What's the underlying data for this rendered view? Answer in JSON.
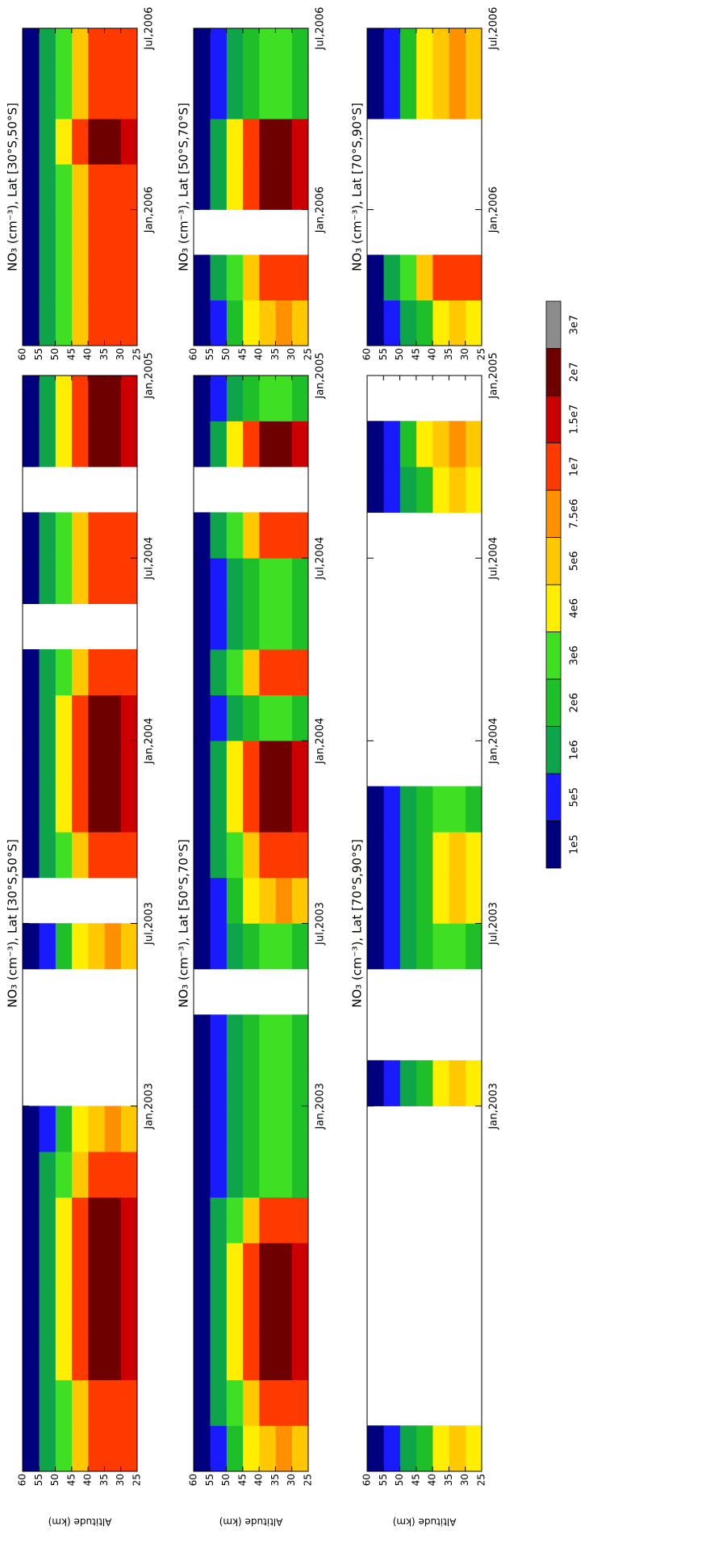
{
  "chart_data": [
    {
      "type": "contour",
      "title": "NO₃ (cm⁻³), Lat [30°S,50°S]",
      "ylabel": "Altitude (km)",
      "xlim": [
        2002,
        2005
      ],
      "xticks": [
        {
          "value": 2003,
          "label": "Jan,2003"
        },
        {
          "value": 2003.5,
          "label": "Jul,2003"
        },
        {
          "value": 2004,
          "label": "Jan,2004"
        },
        {
          "value": 2004.5,
          "label": "Jul,2004"
        },
        {
          "value": 2005,
          "label": "Jan,2005"
        }
      ],
      "ylim": [
        25,
        60
      ],
      "yticks": [
        25,
        30,
        35,
        40,
        45,
        50,
        55,
        60
      ],
      "xbins": [
        2002,
        2002.125,
        2002.25,
        2002.375,
        2002.5,
        2002.625,
        2002.75,
        2002.875,
        2003,
        2003.125,
        2003.25,
        2003.375,
        2003.5,
        2003.625,
        2003.75,
        2003.875,
        2004,
        2004.125,
        2004.25,
        2004.375,
        2004.5,
        2004.625,
        2004.75,
        2004.875,
        2005
      ],
      "ybins": [
        25,
        30,
        35,
        40,
        45,
        50,
        55,
        60
      ],
      "z": [
        [
          12000000.0,
          13000000.0,
          11000000.0,
          7000000.0,
          3500000.0,
          1200000.0,
          300000.0
        ],
        [
          12000000.0,
          13000000.0,
          11000000.0,
          7000000.0,
          3500000.0,
          1200000.0,
          300000.0
        ],
        [
          15000000.0,
          25000000.0,
          22000000.0,
          12000000.0,
          4000000.0,
          1500000.0,
          300000.0
        ],
        [
          15000000.0,
          25000000.0,
          22000000.0,
          12000000.0,
          4000000.0,
          1500000.0,
          300000.0
        ],
        [
          15000000.0,
          25000000.0,
          22000000.0,
          12000000.0,
          4000000.0,
          1500000.0,
          300000.0
        ],
        [
          15000000.0,
          25000000.0,
          22000000.0,
          12000000.0,
          4000000.0,
          1500000.0,
          300000.0
        ],
        [
          12000000.0,
          13000000.0,
          11000000.0,
          7000000.0,
          3500000.0,
          1200000.0,
          300000.0
        ],
        [
          6000000.0,
          8000000.0,
          7000000.0,
          4500000.0,
          2500000.0,
          800000.0,
          200000.0
        ],
        null,
        null,
        null,
        [
          6000000.0,
          8000000.0,
          7000000.0,
          4500000.0,
          2500000.0,
          800000.0,
          200000.0
        ],
        null,
        [
          12000000.0,
          13000000.0,
          11000000.0,
          7000000.0,
          3500000.0,
          1200000.0,
          300000.0
        ],
        [
          15000000.0,
          25000000.0,
          22000000.0,
          12000000.0,
          4000000.0,
          1500000.0,
          300000.0
        ],
        [
          15000000.0,
          25000000.0,
          22000000.0,
          12000000.0,
          4000000.0,
          1500000.0,
          300000.0
        ],
        [
          15000000.0,
          25000000.0,
          22000000.0,
          12000000.0,
          4000000.0,
          1500000.0,
          300000.0
        ],
        [
          12000000.0,
          13000000.0,
          11000000.0,
          7000000.0,
          3500000.0,
          1200000.0,
          300000.0
        ],
        null,
        [
          12000000.0,
          13000000.0,
          11000000.0,
          7000000.0,
          3500000.0,
          1200000.0,
          300000.0
        ],
        [
          12000000.0,
          13000000.0,
          11000000.0,
          7000000.0,
          3500000.0,
          1200000.0,
          300000.0
        ],
        null,
        [
          15000000.0,
          25000000.0,
          22000000.0,
          12000000.0,
          4000000.0,
          1500000.0,
          300000.0
        ],
        [
          15000000.0,
          25000000.0,
          22000000.0,
          12000000.0,
          4000000.0,
          1500000.0,
          300000.0
        ]
      ]
    },
    {
      "type": "contour",
      "title": "NO₃ (cm⁻³), Lat [30°S,50°S]",
      "xlim": [
        2005.625,
        2006.5
      ],
      "xticks": [
        {
          "value": 2006,
          "label": "Jan,2006"
        },
        {
          "value": 2006.5,
          "label": "Jul,2006"
        }
      ],
      "ylim": [
        25,
        60
      ],
      "yticks": [
        25,
        30,
        35,
        40,
        45,
        50,
        55,
        60
      ],
      "xbins": [
        2005.625,
        2005.75,
        2005.875,
        2006,
        2006.125,
        2006.25,
        2006.375,
        2006.5
      ],
      "ybins": [
        25,
        30,
        35,
        40,
        45,
        50,
        55,
        60
      ],
      "z": [
        [
          12000000.0,
          13000000.0,
          11000000.0,
          7000000.0,
          3500000.0,
          1200000.0,
          300000.0
        ],
        [
          12000000.0,
          13000000.0,
          11000000.0,
          7000000.0,
          3500000.0,
          1200000.0,
          300000.0
        ],
        [
          12000000.0,
          13000000.0,
          11000000.0,
          7000000.0,
          3500000.0,
          1200000.0,
          300000.0
        ],
        [
          12000000.0,
          13000000.0,
          11000000.0,
          7000000.0,
          3500000.0,
          1200000.0,
          300000.0
        ],
        [
          15000000.0,
          25000000.0,
          22000000.0,
          12000000.0,
          4000000.0,
          1500000.0,
          300000.0
        ],
        [
          12000000.0,
          13000000.0,
          11000000.0,
          7000000.0,
          3500000.0,
          1200000.0,
          300000.0
        ],
        [
          12000000.0,
          13000000.0,
          11000000.0,
          7000000.0,
          3500000.0,
          1200000.0,
          300000.0
        ]
      ]
    },
    {
      "type": "contour",
      "title": "NO₃ (cm⁻³), Lat [50°S,70°S]",
      "ylabel": "Altitude (km)",
      "xlim": [
        2002,
        2005
      ],
      "xticks": [
        {
          "value": 2003,
          "label": "Jan,2003"
        },
        {
          "value": 2003.5,
          "label": "Jul,2003"
        },
        {
          "value": 2004,
          "label": "Jan,2004"
        },
        {
          "value": 2004.5,
          "label": "Jul,2004"
        },
        {
          "value": 2005,
          "label": "Jan,2005"
        }
      ],
      "ylim": [
        25,
        60
      ],
      "yticks": [
        25,
        30,
        35,
        40,
        45,
        50,
        55,
        60
      ],
      "xbins": [
        2002,
        2002.125,
        2002.25,
        2002.375,
        2002.5,
        2002.625,
        2002.75,
        2002.875,
        2003,
        2003.125,
        2003.25,
        2003.375,
        2003.5,
        2003.625,
        2003.75,
        2003.875,
        2004,
        2004.125,
        2004.25,
        2004.375,
        2004.5,
        2004.625,
        2004.75,
        2004.875,
        2005
      ],
      "ybins": [
        25,
        30,
        35,
        40,
        45,
        50,
        55,
        60
      ],
      "z": [
        [
          6000000.0,
          8000000.0,
          7000000.0,
          4500000.0,
          2500000.0,
          800000.0,
          200000.0
        ],
        [
          12000000.0,
          13000000.0,
          11000000.0,
          7000000.0,
          3500000.0,
          1200000.0,
          300000.0
        ],
        [
          15000000.0,
          25000000.0,
          22000000.0,
          12000000.0,
          4000000.0,
          1500000.0,
          300000.0
        ],
        [
          15000000.0,
          25000000.0,
          22000000.0,
          12000000.0,
          4000000.0,
          1500000.0,
          300000.0
        ],
        [
          15000000.0,
          25000000.0,
          22000000.0,
          12000000.0,
          4000000.0,
          1500000.0,
          300000.0
        ],
        [
          12000000.0,
          13000000.0,
          11000000.0,
          7000000.0,
          3500000.0,
          1200000.0,
          300000.0
        ],
        [
          2500000.0,
          3500000.0,
          3000000.0,
          2000000.0,
          1200000.0,
          600000.0,
          200000.0
        ],
        [
          2500000.0,
          3500000.0,
          3000000.0,
          2000000.0,
          1200000.0,
          600000.0,
          200000.0
        ],
        [
          2500000.0,
          3500000.0,
          3000000.0,
          2000000.0,
          1200000.0,
          600000.0,
          200000.0
        ],
        [
          2500000.0,
          3500000.0,
          3000000.0,
          2000000.0,
          1200000.0,
          600000.0,
          200000.0
        ],
        null,
        [
          2500000.0,
          3500000.0,
          3000000.0,
          2000000.0,
          1200000.0,
          600000.0,
          200000.0
        ],
        [
          6000000.0,
          8000000.0,
          7000000.0,
          4500000.0,
          2500000.0,
          800000.0,
          200000.0
        ],
        [
          12000000.0,
          13000000.0,
          11000000.0,
          7000000.0,
          3500000.0,
          1200000.0,
          300000.0
        ],
        [
          15000000.0,
          25000000.0,
          22000000.0,
          12000000.0,
          4000000.0,
          1500000.0,
          300000.0
        ],
        [
          15000000.0,
          25000000.0,
          22000000.0,
          12000000.0,
          4000000.0,
          1500000.0,
          300000.0
        ],
        [
          2500000.0,
          3500000.0,
          3000000.0,
          2000000.0,
          1200000.0,
          600000.0,
          200000.0
        ],
        [
          12000000.0,
          13000000.0,
          11000000.0,
          7000000.0,
          3500000.0,
          1200000.0,
          300000.0
        ],
        [
          2500000.0,
          3500000.0,
          3000000.0,
          2000000.0,
          1200000.0,
          600000.0,
          200000.0
        ],
        [
          2500000.0,
          3500000.0,
          3000000.0,
          2000000.0,
          1200000.0,
          600000.0,
          200000.0
        ],
        [
          12000000.0,
          13000000.0,
          11000000.0,
          7000000.0,
          3500000.0,
          1200000.0,
          300000.0
        ],
        null,
        [
          15000000.0,
          25000000.0,
          22000000.0,
          12000000.0,
          4000000.0,
          1500000.0,
          300000.0
        ],
        [
          2500000.0,
          3500000.0,
          3000000.0,
          2000000.0,
          1200000.0,
          600000.0,
          200000.0
        ]
      ]
    },
    {
      "type": "contour",
      "title": "NO₃ (cm⁻³), Lat [50°S,70°S]",
      "xlim": [
        2005.625,
        2006.5
      ],
      "xticks": [
        {
          "value": 2006,
          "label": "Jan,2006"
        },
        {
          "value": 2006.5,
          "label": "Jul,2006"
        }
      ],
      "ylim": [
        25,
        60
      ],
      "yticks": [
        25,
        30,
        35,
        40,
        45,
        50,
        55,
        60
      ],
      "xbins": [
        2005.625,
        2005.75,
        2005.875,
        2006,
        2006.125,
        2006.25,
        2006.375,
        2006.5
      ],
      "ybins": [
        25,
        30,
        35,
        40,
        45,
        50,
        55,
        60
      ],
      "z": [
        [
          6000000.0,
          8000000.0,
          7000000.0,
          4500000.0,
          2500000.0,
          800000.0,
          200000.0
        ],
        [
          12000000.0,
          13000000.0,
          11000000.0,
          7000000.0,
          3500000.0,
          1200000.0,
          300000.0
        ],
        null,
        [
          15000000.0,
          25000000.0,
          22000000.0,
          12000000.0,
          4000000.0,
          1500000.0,
          300000.0
        ],
        [
          15000000.0,
          25000000.0,
          22000000.0,
          12000000.0,
          4000000.0,
          1500000.0,
          300000.0
        ],
        [
          2500000.0,
          3500000.0,
          3000000.0,
          2000000.0,
          1200000.0,
          600000.0,
          200000.0
        ],
        [
          2500000.0,
          3500000.0,
          3000000.0,
          2000000.0,
          1200000.0,
          600000.0,
          200000.0
        ]
      ]
    },
    {
      "type": "contour",
      "title": "NO₃ (cm⁻³), Lat [70°S,90°S]",
      "ylabel": "Altitude (km)",
      "xlim": [
        2002,
        2005
      ],
      "xticks": [
        {
          "value": 2003,
          "label": "Jan,2003"
        },
        {
          "value": 2003.5,
          "label": "Jul,2003"
        },
        {
          "value": 2004,
          "label": "Jan,2004"
        },
        {
          "value": 2004.5,
          "label": "Jul,2004"
        },
        {
          "value": 2005,
          "label": "Jan,2005"
        }
      ],
      "ylim": [
        25,
        60
      ],
      "yticks": [
        25,
        30,
        35,
        40,
        45,
        50,
        55,
        60
      ],
      "xbins": [
        2002,
        2002.125,
        2002.25,
        2002.375,
        2002.5,
        2002.625,
        2002.75,
        2002.875,
        2003,
        2003.125,
        2003.25,
        2003.375,
        2003.5,
        2003.625,
        2003.75,
        2003.875,
        2004,
        2004.125,
        2004.25,
        2004.375,
        2004.5,
        2004.625,
        2004.75,
        2004.875,
        2005
      ],
      "ybins": [
        25,
        30,
        35,
        40,
        45,
        50,
        55,
        60
      ],
      "z": [
        [
          4500000.0,
          5500000.0,
          4500000.0,
          2500000.0,
          1200000.0,
          500000.0,
          150000.0
        ],
        null,
        null,
        null,
        null,
        null,
        null,
        null,
        [
          4500000.0,
          5500000.0,
          4500000.0,
          2500000.0,
          1200000.0,
          500000.0,
          150000.0
        ],
        null,
        null,
        [
          2500000.0,
          3500000.0,
          3000000.0,
          2000000.0,
          1200000.0,
          600000.0,
          200000.0
        ],
        [
          4500000.0,
          5500000.0,
          4500000.0,
          2500000.0,
          1200000.0,
          500000.0,
          150000.0
        ],
        [
          4500000.0,
          5500000.0,
          4500000.0,
          2500000.0,
          1200000.0,
          500000.0,
          150000.0
        ],
        [
          2500000.0,
          3500000.0,
          3000000.0,
          2000000.0,
          1200000.0,
          600000.0,
          200000.0
        ],
        null,
        null,
        null,
        null,
        null,
        null,
        [
          4500000.0,
          5500000.0,
          4500000.0,
          2500000.0,
          1200000.0,
          500000.0,
          150000.0
        ],
        [
          6000000.0,
          8000000.0,
          7000000.0,
          4500000.0,
          2500000.0,
          800000.0,
          200000.0
        ],
        null
      ]
    },
    {
      "type": "contour",
      "title": "NO₃ (cm⁻³), Lat [70°S,90°S]",
      "xlim": [
        2005.625,
        2006.5
      ],
      "xticks": [
        {
          "value": 2006,
          "label": "Jan,2006"
        },
        {
          "value": 2006.5,
          "label": "Jul,2006"
        }
      ],
      "ylim": [
        25,
        60
      ],
      "yticks": [
        25,
        30,
        35,
        40,
        45,
        50,
        55,
        60
      ],
      "xbins": [
        2005.625,
        2005.75,
        2005.875,
        2006,
        2006.125,
        2006.25,
        2006.375,
        2006.5
      ],
      "ybins": [
        25,
        30,
        35,
        40,
        45,
        50,
        55,
        60
      ],
      "z": [
        [
          4500000.0,
          5500000.0,
          4500000.0,
          2500000.0,
          1200000.0,
          500000.0,
          150000.0
        ],
        [
          12000000.0,
          13000000.0,
          11000000.0,
          7000000.0,
          3500000.0,
          1200000.0,
          300000.0
        ],
        null,
        null,
        null,
        [
          6000000.0,
          8000000.0,
          7000000.0,
          4500000.0,
          2500000.0,
          800000.0,
          200000.0
        ],
        [
          6000000.0,
          8000000.0,
          7000000.0,
          4500000.0,
          2500000.0,
          800000.0,
          200000.0
        ]
      ]
    }
  ],
  "colorbar": {
    "levels": [
      {
        "value": 100000,
        "label": "1e5"
      },
      {
        "value": 500000,
        "label": "5e5"
      },
      {
        "value": 1000000,
        "label": "1e6"
      },
      {
        "value": 2000000,
        "label": "2e6"
      },
      {
        "value": 3000000,
        "label": "3e6"
      },
      {
        "value": 4000000,
        "label": "4e6"
      },
      {
        "value": 5000000,
        "label": "5e6"
      },
      {
        "value": 7500000,
        "label": "7.5e6"
      },
      {
        "value": 10000000,
        "label": "1e7"
      },
      {
        "value": 15000000,
        "label": "1.5e7"
      },
      {
        "value": 20000000,
        "label": "2e7"
      },
      {
        "value": 30000000,
        "label": "3e7"
      }
    ],
    "colors": [
      "#00007f",
      "#1a1aff",
      "#0ea54a",
      "#1fbf2a",
      "#3fe024",
      "#ffee00",
      "#ffc800",
      "#ff9100",
      "#ff3a00",
      "#cc0000",
      "#6e0000",
      "#8c8c8c"
    ]
  }
}
